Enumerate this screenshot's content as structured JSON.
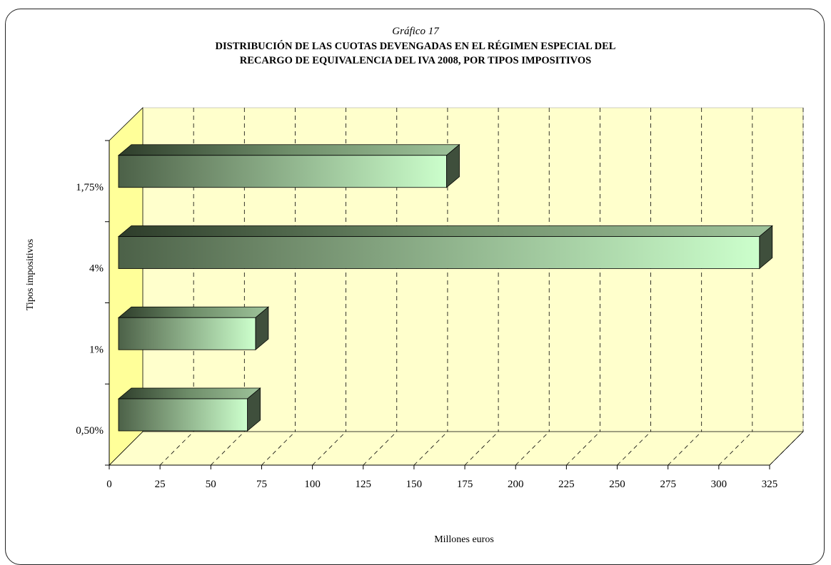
{
  "header": {
    "caption": "Gráfico 17",
    "title_line1": "DISTRIBUCIÓN DE LAS CUOTAS DEVENGADAS EN EL RÉGIMEN ESPECIAL DEL",
    "title_line2": "RECARGO DE EQUIVALENCIA DEL IVA 2008, POR TIPOS IMPOSITIVOS"
  },
  "colors": {
    "wall": "#ffffcc",
    "side_wall": "#ffff99",
    "bar_dark": "#4c6148",
    "bar_light": "#ccffcc",
    "bar_top": "#9ec39a",
    "bar_side": "#3f4f3c"
  },
  "chart_data": {
    "type": "bar",
    "orientation": "horizontal",
    "three_d": true,
    "categories": [
      "0,50%",
      "1%",
      "4%",
      "1,75%"
    ],
    "values": [
      68,
      72,
      320,
      166
    ],
    "xlabel": "Millones euros",
    "ylabel": "Tipos impositivos",
    "xlim": [
      0,
      325
    ],
    "xticks": [
      "0",
      "25",
      "50",
      "75",
      "100",
      "125",
      "150",
      "175",
      "200",
      "225",
      "250",
      "275",
      "300",
      "325"
    ],
    "grid": true
  }
}
